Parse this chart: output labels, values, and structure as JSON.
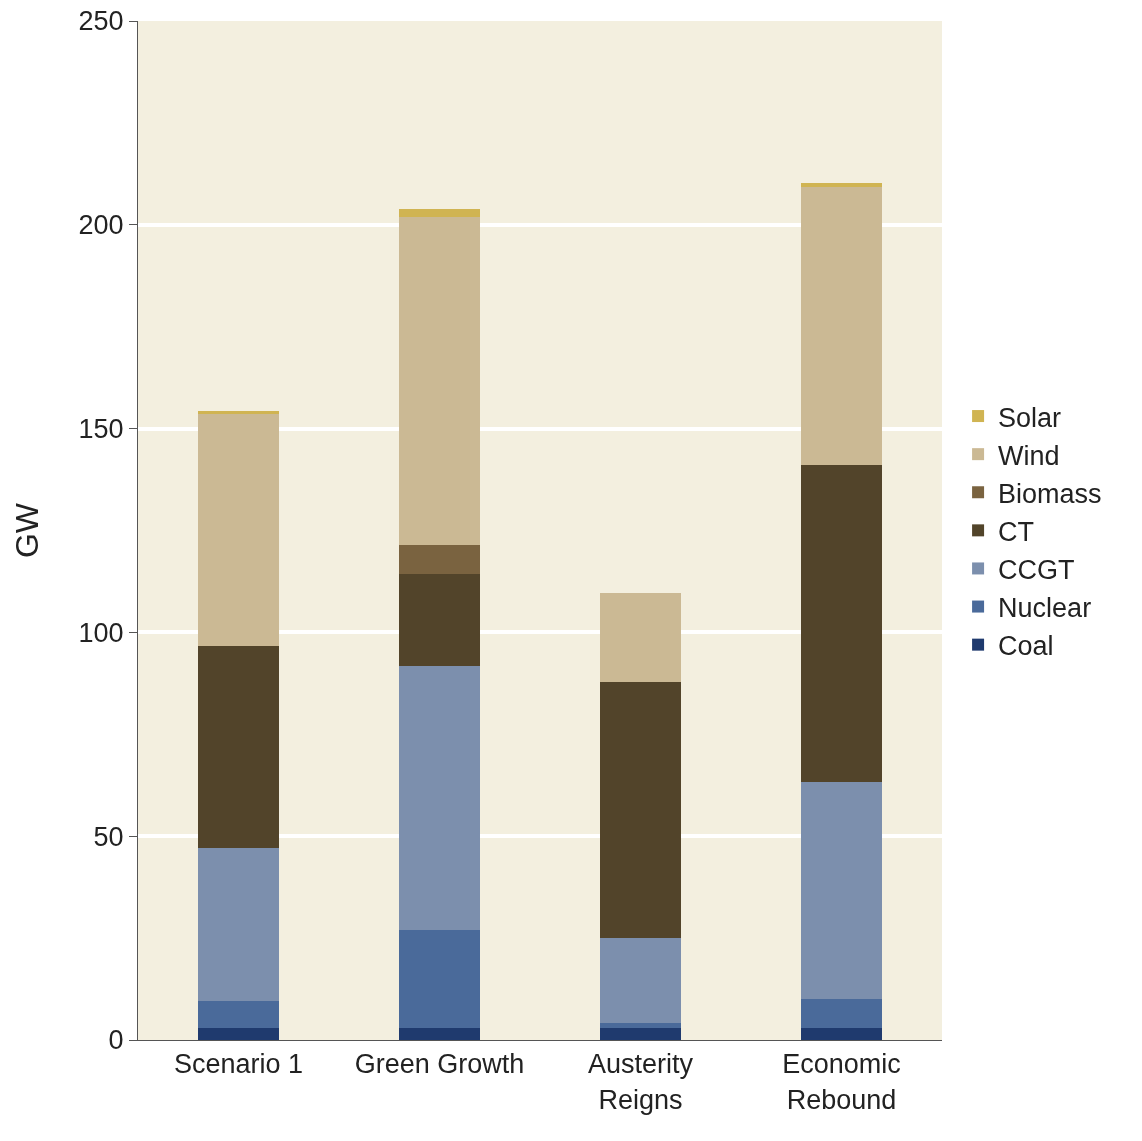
{
  "chart_data": {
    "type": "bar",
    "stacked": true,
    "ylabel": "GW",
    "categories": [
      "Scenario 1",
      "Green Growth",
      "Austerity Reigns",
      "Economic Rebound"
    ],
    "series": [
      {
        "name": "Coal",
        "color": "#1f3a6e",
        "values": [
          3,
          3,
          3,
          3
        ]
      },
      {
        "name": "Nuclear",
        "color": "#4a6a9a",
        "values": [
          6.6,
          24,
          1.2,
          7.1
        ]
      },
      {
        "name": "CCGT",
        "color": "#7c8fad",
        "values": [
          37.5,
          64.8,
          20.8,
          53.2
        ]
      },
      {
        "name": "CT",
        "color": "#52442a",
        "values": [
          49.6,
          22.5,
          62.8,
          77.8
        ]
      },
      {
        "name": "Biomass",
        "color": "#7a6340",
        "values": [
          0,
          7.1,
          0,
          0
        ]
      },
      {
        "name": "Wind",
        "color": "#cbb994",
        "values": [
          56.9,
          80.5,
          21.9,
          68.2
        ]
      },
      {
        "name": "Solar",
        "color": "#d0b452",
        "values": [
          0.7,
          2,
          0,
          1
        ]
      }
    ],
    "ylim": [
      0,
      250
    ],
    "yticks": [
      0,
      50,
      100,
      150,
      200,
      250
    ],
    "grid": "y",
    "legend": "right"
  }
}
